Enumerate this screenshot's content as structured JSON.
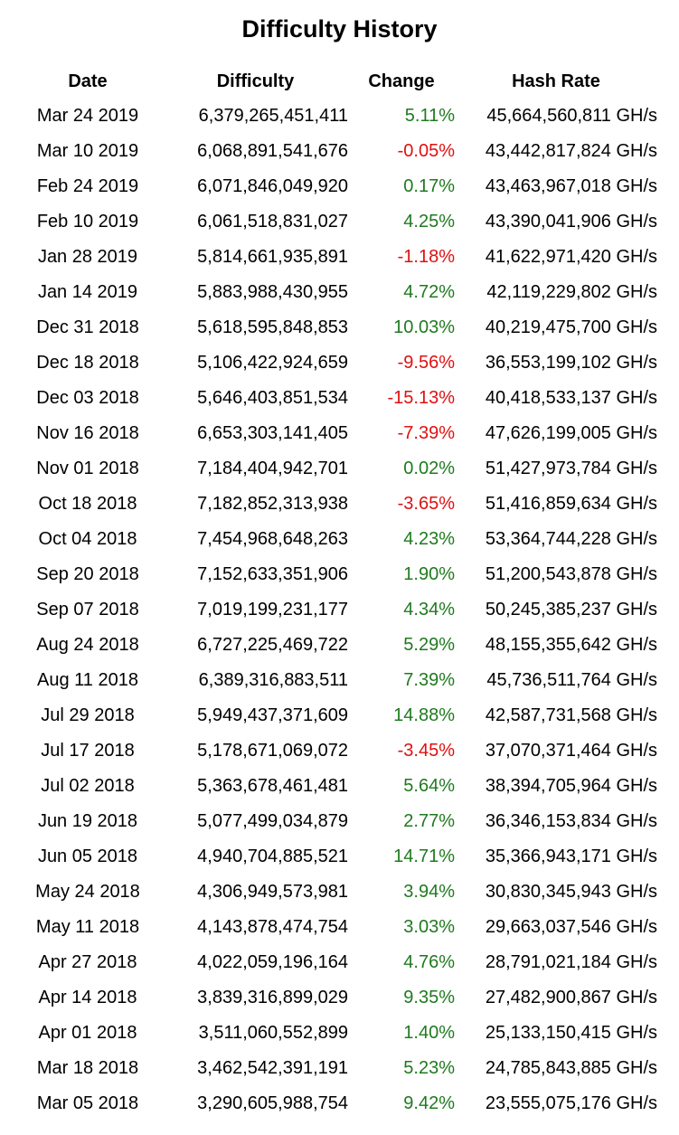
{
  "title": "Difficulty History",
  "colors": {
    "positive_change": "#1f7a1f",
    "negative_change": "#e01010"
  },
  "table": {
    "headers": {
      "date": "Date",
      "difficulty": "Difficulty",
      "change": "Change",
      "hash_rate": "Hash Rate"
    },
    "rows": [
      {
        "date": "Mar 24 2019",
        "difficulty": "6,379,265,451,411",
        "change": "5.11%",
        "hash_rate": "45,664,560,811 GH/s"
      },
      {
        "date": "Mar 10 2019",
        "difficulty": "6,068,891,541,676",
        "change": "-0.05%",
        "hash_rate": "43,442,817,824 GH/s"
      },
      {
        "date": "Feb 24 2019",
        "difficulty": "6,071,846,049,920",
        "change": "0.17%",
        "hash_rate": "43,463,967,018 GH/s"
      },
      {
        "date": "Feb 10 2019",
        "difficulty": "6,061,518,831,027",
        "change": "4.25%",
        "hash_rate": "43,390,041,906 GH/s"
      },
      {
        "date": "Jan 28 2019",
        "difficulty": "5,814,661,935,891",
        "change": "-1.18%",
        "hash_rate": "41,622,971,420 GH/s"
      },
      {
        "date": "Jan 14 2019",
        "difficulty": "5,883,988,430,955",
        "change": "4.72%",
        "hash_rate": "42,119,229,802 GH/s"
      },
      {
        "date": "Dec 31 2018",
        "difficulty": "5,618,595,848,853",
        "change": "10.03%",
        "hash_rate": "40,219,475,700 GH/s"
      },
      {
        "date": "Dec 18 2018",
        "difficulty": "5,106,422,924,659",
        "change": "-9.56%",
        "hash_rate": "36,553,199,102 GH/s"
      },
      {
        "date": "Dec 03 2018",
        "difficulty": "5,646,403,851,534",
        "change": "-15.13%",
        "hash_rate": "40,418,533,137 GH/s"
      },
      {
        "date": "Nov 16 2018",
        "difficulty": "6,653,303,141,405",
        "change": "-7.39%",
        "hash_rate": "47,626,199,005 GH/s"
      },
      {
        "date": "Nov 01 2018",
        "difficulty": "7,184,404,942,701",
        "change": "0.02%",
        "hash_rate": "51,427,973,784 GH/s"
      },
      {
        "date": "Oct 18 2018",
        "difficulty": "7,182,852,313,938",
        "change": "-3.65%",
        "hash_rate": "51,416,859,634 GH/s"
      },
      {
        "date": "Oct 04 2018",
        "difficulty": "7,454,968,648,263",
        "change": "4.23%",
        "hash_rate": "53,364,744,228 GH/s"
      },
      {
        "date": "Sep 20 2018",
        "difficulty": "7,152,633,351,906",
        "change": "1.90%",
        "hash_rate": "51,200,543,878 GH/s"
      },
      {
        "date": "Sep 07 2018",
        "difficulty": "7,019,199,231,177",
        "change": "4.34%",
        "hash_rate": "50,245,385,237 GH/s"
      },
      {
        "date": "Aug 24 2018",
        "difficulty": "6,727,225,469,722",
        "change": "5.29%",
        "hash_rate": "48,155,355,642 GH/s"
      },
      {
        "date": "Aug 11 2018",
        "difficulty": "6,389,316,883,511",
        "change": "7.39%",
        "hash_rate": "45,736,511,764 GH/s"
      },
      {
        "date": "Jul 29 2018",
        "difficulty": "5,949,437,371,609",
        "change": "14.88%",
        "hash_rate": "42,587,731,568 GH/s"
      },
      {
        "date": "Jul 17 2018",
        "difficulty": "5,178,671,069,072",
        "change": "-3.45%",
        "hash_rate": "37,070,371,464 GH/s"
      },
      {
        "date": "Jul 02 2018",
        "difficulty": "5,363,678,461,481",
        "change": "5.64%",
        "hash_rate": "38,394,705,964 GH/s"
      },
      {
        "date": "Jun 19 2018",
        "difficulty": "5,077,499,034,879",
        "change": "2.77%",
        "hash_rate": "36,346,153,834 GH/s"
      },
      {
        "date": "Jun 05 2018",
        "difficulty": "4,940,704,885,521",
        "change": "14.71%",
        "hash_rate": "35,366,943,171 GH/s"
      },
      {
        "date": "May 24 2018",
        "difficulty": "4,306,949,573,981",
        "change": "3.94%",
        "hash_rate": "30,830,345,943 GH/s"
      },
      {
        "date": "May 11 2018",
        "difficulty": "4,143,878,474,754",
        "change": "3.03%",
        "hash_rate": "29,663,037,546 GH/s"
      },
      {
        "date": "Apr 27 2018",
        "difficulty": "4,022,059,196,164",
        "change": "4.76%",
        "hash_rate": "28,791,021,184 GH/s"
      },
      {
        "date": "Apr 14 2018",
        "difficulty": "3,839,316,899,029",
        "change": "9.35%",
        "hash_rate": "27,482,900,867 GH/s"
      },
      {
        "date": "Apr 01 2018",
        "difficulty": "3,511,060,552,899",
        "change": "1.40%",
        "hash_rate": "25,133,150,415 GH/s"
      },
      {
        "date": "Mar 18 2018",
        "difficulty": "3,462,542,391,191",
        "change": "5.23%",
        "hash_rate": "24,785,843,885 GH/s"
      },
      {
        "date": "Mar 05 2018",
        "difficulty": "3,290,605,988,754",
        "change": "9.42%",
        "hash_rate": "23,555,075,176 GH/s"
      }
    ]
  }
}
